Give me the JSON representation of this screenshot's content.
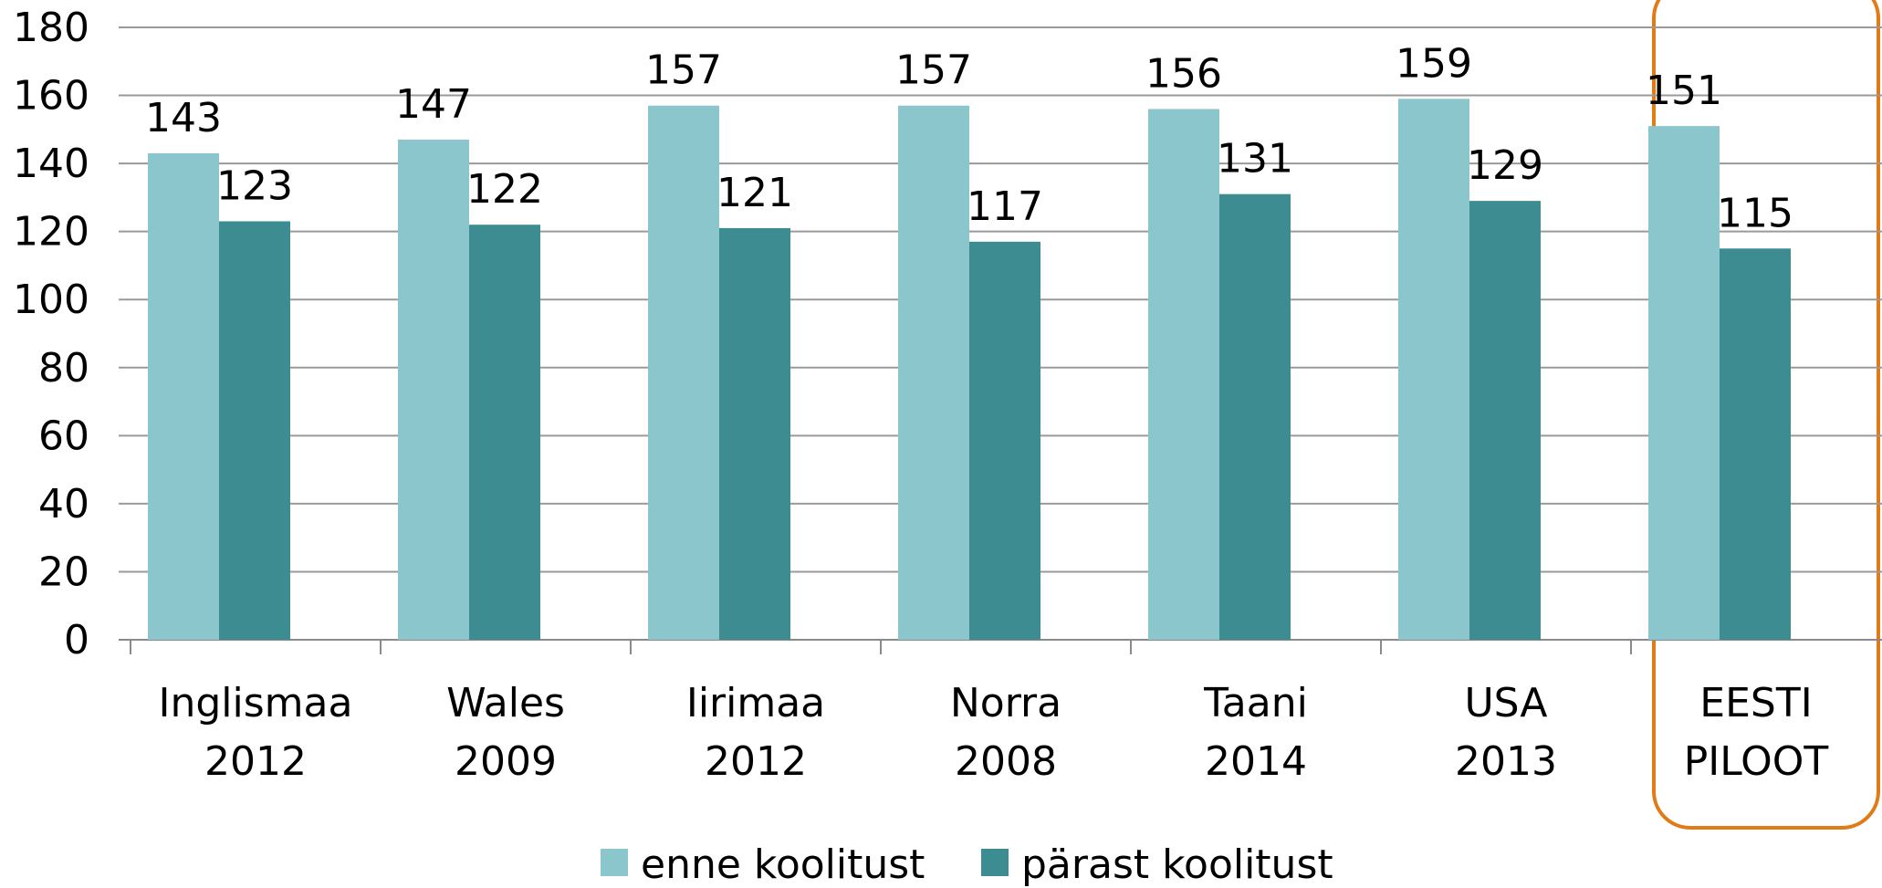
{
  "chart_data": {
    "type": "bar",
    "categories": [
      "Inglismaa\n2012",
      "Wales\n2009",
      "Iirimaa\n2012",
      "Norra\n2008",
      "Taani\n2014",
      "USA\n2013",
      "EESTI\nPILOOT"
    ],
    "series": [
      {
        "name": "enne koolitust",
        "color": "#8cc6cd",
        "values": [
          143,
          147,
          157,
          157,
          156,
          159,
          151
        ]
      },
      {
        "name": "pärast koolitust",
        "color": "#3d8c92",
        "values": [
          123,
          122,
          121,
          117,
          131,
          129,
          115
        ]
      }
    ],
    "ylim": [
      0,
      180
    ],
    "yticks": [
      0,
      20,
      40,
      60,
      80,
      100,
      120,
      140,
      160,
      180
    ],
    "grid": true,
    "legend": "bottom"
  }
}
